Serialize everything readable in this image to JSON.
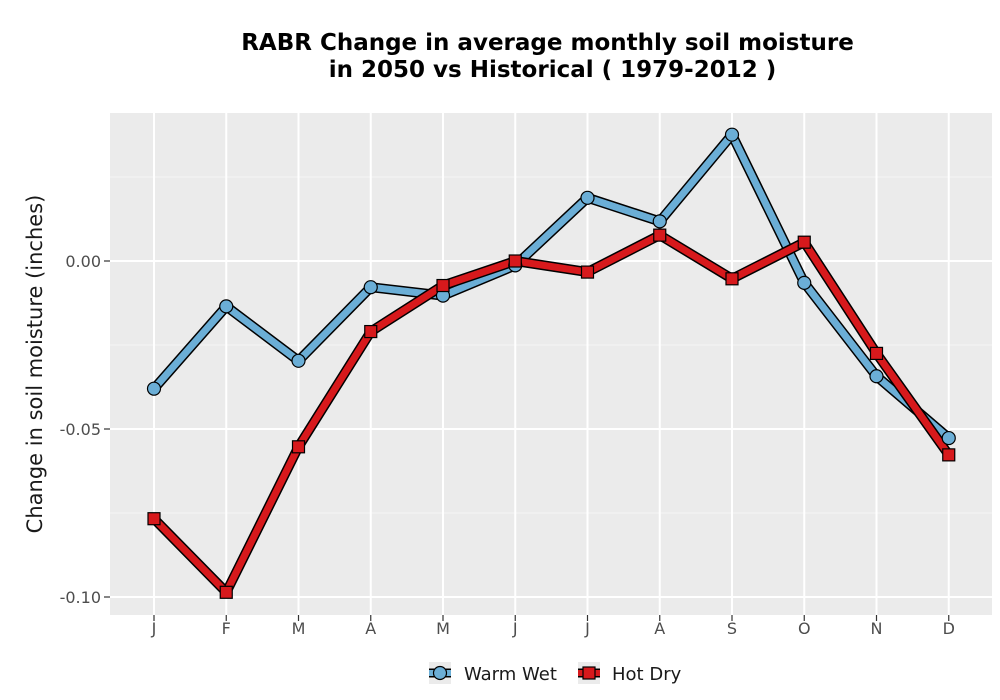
{
  "chart_data": {
    "type": "line",
    "title_line1": "RABR  Change in average monthly soil moisture",
    "title_line2": "in 2050 vs Historical ( 1979-2012 )",
    "ylabel": "Change in soil moisture (inches)",
    "xlabel": "",
    "categories": [
      "J",
      "F",
      "M",
      "A",
      "M",
      "J",
      "J",
      "A",
      "S",
      "O",
      "N",
      "D"
    ],
    "y_ticks": [
      {
        "value": 0.0,
        "label": "0.00"
      },
      {
        "value": -0.05,
        "label": "-0.05"
      },
      {
        "value": -0.1,
        "label": "-0.10"
      }
    ],
    "ylim": [
      -0.105,
      0.044
    ],
    "grid": true,
    "legend_position": "bottom",
    "series": [
      {
        "name": "Warm Wet",
        "marker": "circle",
        "color": "#6baed6",
        "values": [
          -0.038,
          -0.0135,
          -0.0297,
          -0.0078,
          -0.0103,
          -0.0013,
          0.0188,
          0.0118,
          0.0376,
          -0.0065,
          -0.0343,
          -0.0527
        ]
      },
      {
        "name": "Hot Dry",
        "marker": "square",
        "color": "#d7191c",
        "values": [
          -0.0767,
          -0.0986,
          -0.0553,
          -0.021,
          -0.0073,
          0.0,
          -0.0033,
          0.0077,
          -0.0053,
          0.0056,
          -0.0275,
          -0.0577
        ]
      }
    ]
  }
}
